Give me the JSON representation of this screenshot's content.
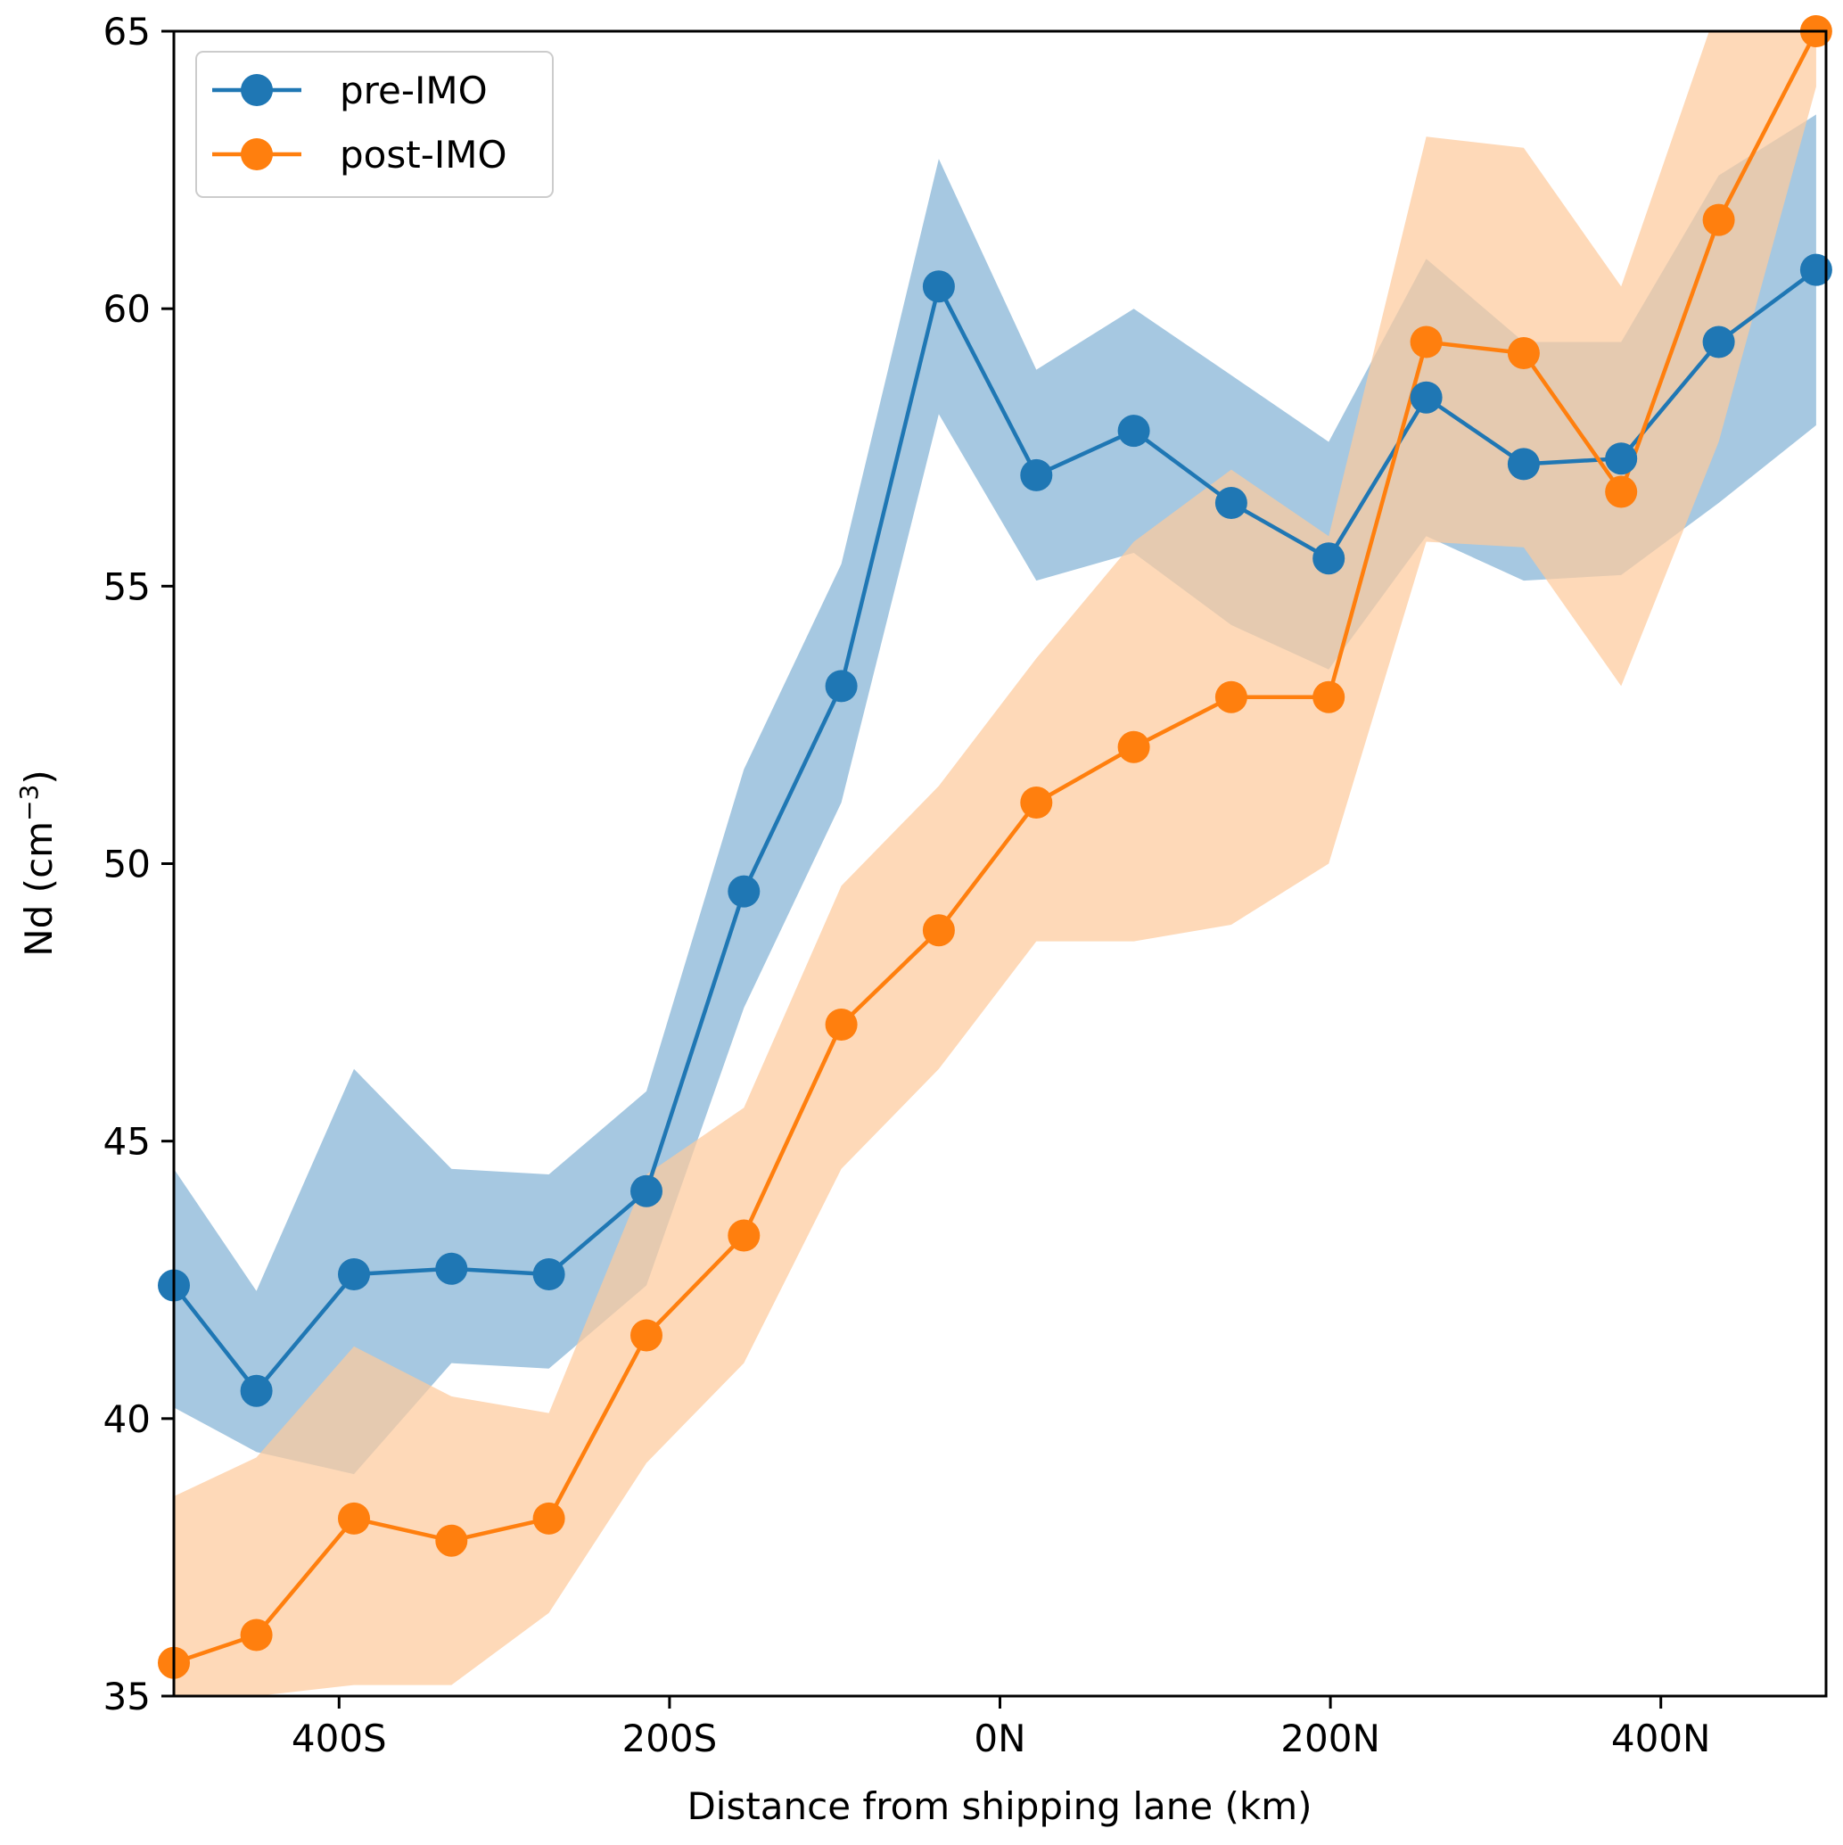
{
  "chart_data": {
    "type": "line",
    "title": "",
    "xlabel": "Distance from shipping lane (km)",
    "ylabel": "Nd (cm",
    "ylabel_sup": "−3",
    "ylabel_close": ")",
    "xlim": [
      -500,
      500
    ],
    "ylim": [
      35,
      65
    ],
    "xticks": [
      {
        "value": -400,
        "label": "400S"
      },
      {
        "value": -200,
        "label": "200S"
      },
      {
        "value": 0,
        "label": "0N"
      },
      {
        "value": 200,
        "label": "200N"
      },
      {
        "value": 400,
        "label": "400N"
      }
    ],
    "yticks": [
      {
        "value": 35,
        "label": "35"
      },
      {
        "value": 40,
        "label": "40"
      },
      {
        "value": 45,
        "label": "45"
      },
      {
        "value": 50,
        "label": "50"
      },
      {
        "value": 55,
        "label": "55"
      },
      {
        "value": 60,
        "label": "60"
      },
      {
        "value": 65,
        "label": "65"
      }
    ],
    "legend_position": "top-left",
    "x": [
      -500,
      -450,
      -391,
      -332,
      -273,
      -214,
      -155,
      -96,
      -37,
      22,
      81,
      140,
      199,
      258,
      317,
      376,
      435,
      494
    ],
    "series": [
      {
        "name": "pre-IMO",
        "color": "#1f77b4",
        "band_color": "#a6c8e1",
        "values": [
          42.4,
          40.5,
          42.6,
          42.7,
          42.6,
          44.1,
          49.5,
          53.2,
          60.4,
          57.0,
          57.8,
          56.5,
          55.5,
          58.4,
          57.2,
          57.3,
          59.4,
          60.7
        ],
        "upper": [
          44.5,
          42.3,
          46.3,
          44.5,
          44.4,
          45.9,
          51.7,
          55.4,
          62.7,
          58.9,
          60.0,
          58.8,
          57.6,
          60.9,
          59.4,
          59.4,
          62.4,
          63.5
        ],
        "lower": [
          40.2,
          39.4,
          39.0,
          41.0,
          40.9,
          42.4,
          47.4,
          51.1,
          58.1,
          55.1,
          55.6,
          54.3,
          53.5,
          55.9,
          55.1,
          55.2,
          56.5,
          57.9
        ]
      },
      {
        "name": "post-IMO",
        "color": "#ff7f0e",
        "band_color": "#fdcb9c",
        "values": [
          35.6,
          36.1,
          38.2,
          37.8,
          38.2,
          41.5,
          43.3,
          47.1,
          48.8,
          51.1,
          52.1,
          53.0,
          53.0,
          59.4,
          59.2,
          56.7,
          61.6,
          65.0
        ],
        "upper": [
          38.6,
          39.3,
          41.3,
          40.4,
          40.1,
          44.4,
          45.6,
          49.6,
          51.4,
          53.7,
          55.8,
          57.1,
          55.9,
          63.1,
          62.9,
          60.4,
          65.5,
          65.5
        ],
        "lower": [
          35.0,
          35.0,
          35.2,
          35.2,
          36.5,
          39.2,
          41.0,
          44.5,
          46.3,
          48.6,
          48.6,
          48.9,
          50.0,
          55.8,
          55.7,
          53.2,
          57.6,
          64.0
        ]
      }
    ]
  }
}
